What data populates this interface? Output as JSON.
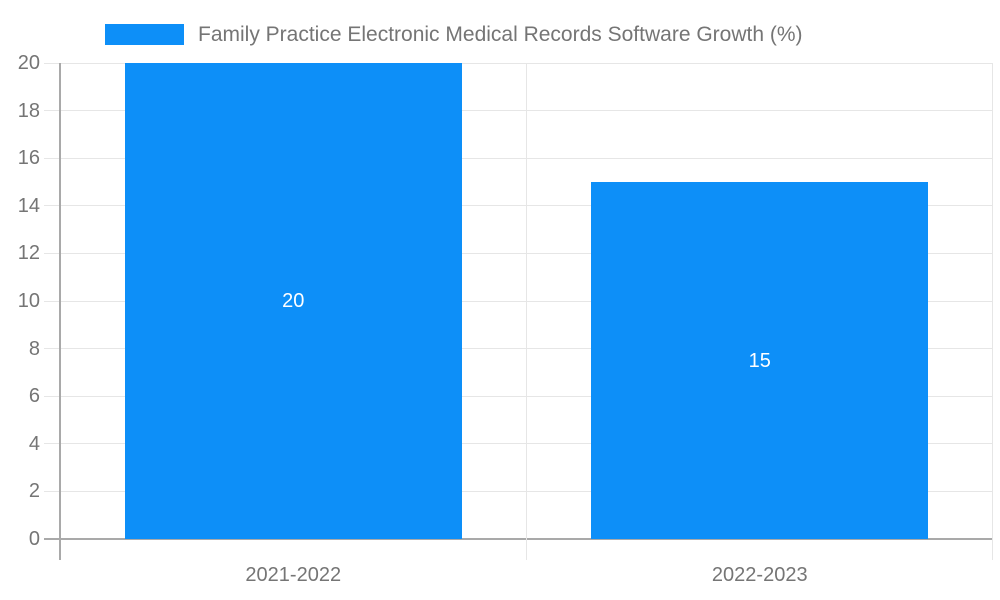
{
  "chart_data": {
    "type": "bar",
    "title": "Family Practice Electronic Medical Records Software Growth (%)",
    "categories": [
      "2021-2022",
      "2022-2023"
    ],
    "series": [
      {
        "name": "Family Practice Electronic Medical Records Software Growth (%)",
        "values": [
          20,
          15
        ]
      }
    ],
    "data_labels": [
      "20",
      "15"
    ],
    "xlabel": "",
    "ylabel": "",
    "ylim": [
      0,
      20
    ],
    "yticks": [
      0,
      2,
      4,
      6,
      8,
      10,
      12,
      14,
      16,
      18,
      20
    ],
    "grid": true,
    "legend_position": "top"
  },
  "colors": {
    "bar": "#0d8ff8",
    "grid": "#e6e6e6",
    "axis": "#a9a9a9",
    "tick_text": "#757575",
    "legend_text": "#757575",
    "data_label": "#ffffff",
    "background": "#ffffff"
  }
}
